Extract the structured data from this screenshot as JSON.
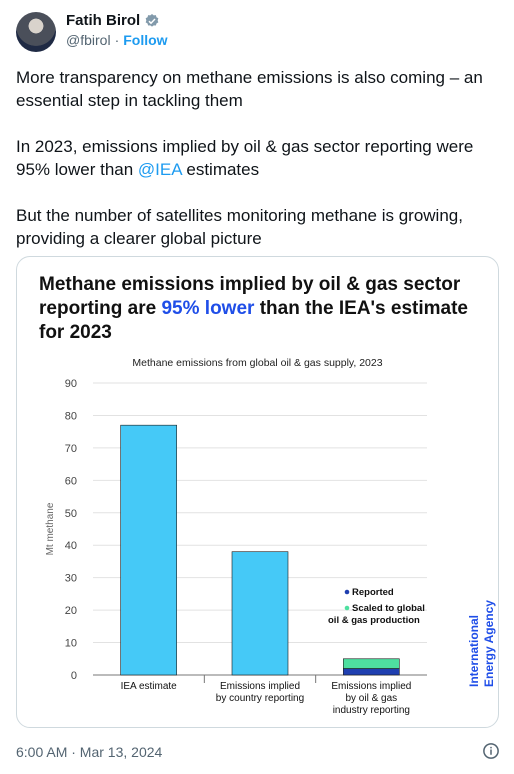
{
  "author": {
    "name": "Fatih Birol",
    "handle": "@fbirol",
    "separator": "·",
    "follow_label": "Follow"
  },
  "tweet": {
    "p1": "More transparency on methane emissions is also coming – an essential step in tackling them",
    "p2_before": "In 2023, emissions implied by oil & gas sector reporting were 95% lower than ",
    "p2_mention": "@IEA",
    "p2_after": " estimates",
    "p3": "But the number of satellites monitoring methane is growing, providing a clearer global picture"
  },
  "image": {
    "title_part1": "Methane emissions implied by oil & gas sector reporting are ",
    "title_highlight": "95% lower",
    "title_part2": " than the IEA's estimate for 2023",
    "logo_line1": "International",
    "logo_line2": "Energy Agency"
  },
  "chart_data": {
    "type": "bar",
    "title": "Methane emissions from global oil & gas supply, 2023",
    "ylabel": "Mt methane",
    "ylim": [
      0,
      90
    ],
    "yticks": [
      0,
      10,
      20,
      30,
      40,
      50,
      60,
      70,
      80,
      90
    ],
    "categories": [
      [
        "IEA estimate"
      ],
      [
        "Emissions implied",
        "by country reporting"
      ],
      [
        "Emissions implied",
        "by oil & gas",
        "industry reporting"
      ]
    ],
    "series": [
      {
        "name": "Reported",
        "values": [
          77,
          38,
          2
        ]
      },
      {
        "name": "Scaled to global oil & gas production",
        "values": [
          0,
          0,
          3
        ]
      }
    ],
    "legend": [
      {
        "label_lines": [
          "Reported"
        ],
        "color": "#1f3fb0"
      },
      {
        "label_lines": [
          "Scaled to global",
          "oil & gas production"
        ],
        "color": "#4ee0a0"
      }
    ],
    "colors": {
      "main_bar": "#45c9f7",
      "reported": "#1f3fb0",
      "scaled": "#4ee0a0"
    }
  },
  "footer": {
    "timestamp": "6:00 AM · Mar 13, 2024"
  }
}
